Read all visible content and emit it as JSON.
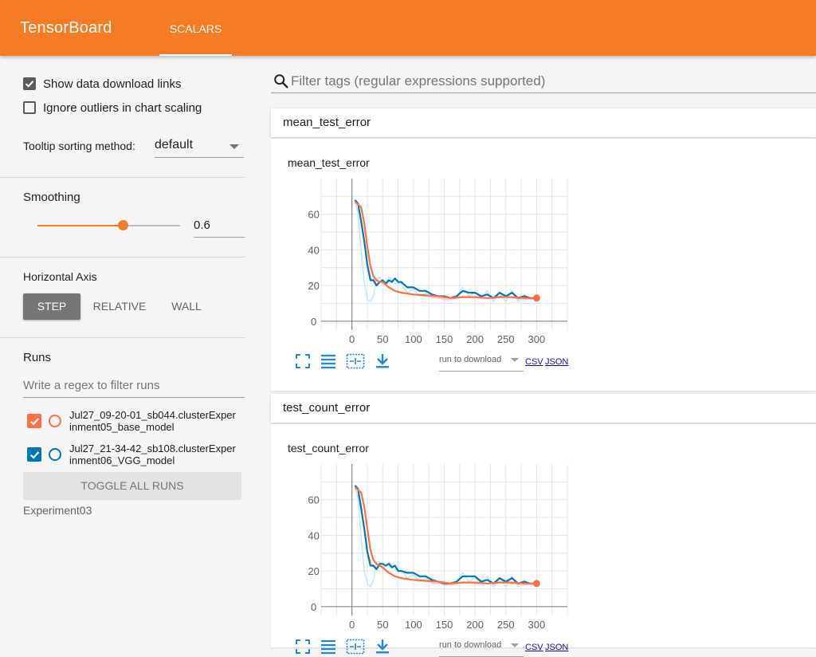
{
  "header": {
    "brand": "TensorBoard",
    "tab_scalars": "SCALARS"
  },
  "sidebar": {
    "show_download_links": {
      "label": "Show data download links",
      "checked": true
    },
    "ignore_outliers": {
      "label": "Ignore outliers in chart scaling",
      "checked": false
    },
    "tooltip_sorting": {
      "label": "Tooltip sorting method:",
      "value": "default"
    },
    "smoothing": {
      "title": "Smoothing",
      "value": "0.6",
      "fraction": 0.6
    },
    "horizontal_axis": {
      "title": "Horizontal Axis",
      "options": [
        "STEP",
        "RELATIVE",
        "WALL"
      ],
      "selected": "STEP"
    },
    "runs": {
      "title": "Runs",
      "filter_placeholder": "Write a regex to filter runs",
      "items": [
        {
          "label": "Jul27_09-20-01_sb044.clusterExper\ninment05_base_model",
          "color": "#ff7043",
          "checked": true
        },
        {
          "label": "Jul27_21-34-42_sb108.clusterExper\ninment06_VGG_model",
          "color": "#0077bb",
          "checked": true
        }
      ],
      "toggle_all": "TOGGLE ALL RUNS",
      "experiment": "Experiment03"
    }
  },
  "main": {
    "search_placeholder": "Filter tags (regular expressions supported)",
    "cards": [
      {
        "tag": "mean_test_error",
        "chart_title": "mean_test_error"
      },
      {
        "tag": "test_count_error",
        "chart_title": "test_count_error"
      }
    ],
    "download": {
      "select_label": "run to download",
      "csv": "CSV",
      "json": "JSON"
    }
  },
  "colors": {
    "accent": "#f57c24",
    "run_orange": "#ff7043",
    "run_blue": "#0077bb",
    "raw_orange": "#ffccbc",
    "raw_blue": "#b3e5fc"
  },
  "icons": [
    "search-icon",
    "fit-to-data-icon",
    "log-scale-icon",
    "zoom-region-icon",
    "download-icon"
  ],
  "chart_data": [
    {
      "type": "line",
      "title": "mean_test_error",
      "xlabel": "",
      "ylabel": "",
      "xlim": [
        -50,
        350
      ],
      "ylim": [
        -5,
        80
      ],
      "xticks": [
        0,
        50,
        100,
        150,
        200,
        250,
        300
      ],
      "yticks": [
        0,
        20,
        40,
        60
      ],
      "grid": true,
      "series": [
        {
          "color": "#ff7043",
          "x": [
            5,
            15,
            20,
            25,
            30,
            35,
            40,
            45,
            50,
            60,
            70,
            80,
            100,
            120,
            140,
            160,
            180,
            200,
            220,
            240,
            260,
            280,
            300
          ],
          "y": [
            67,
            64,
            55,
            42,
            31,
            25,
            23,
            22,
            22,
            19,
            17,
            16,
            15,
            14.5,
            14,
            13,
            13.5,
            13.5,
            13,
            13.5,
            13.5,
            13,
            13
          ]
        },
        {
          "color": "#0077bb",
          "x": [
            5,
            10,
            15,
            20,
            25,
            30,
            35,
            40,
            45,
            50,
            55,
            60,
            65,
            70,
            75,
            80,
            90,
            100,
            110,
            120,
            130,
            140,
            150,
            160,
            170,
            180,
            190,
            200,
            210,
            220,
            230,
            240,
            250,
            260,
            270,
            280,
            290,
            300
          ],
          "y": [
            68,
            66,
            56,
            45,
            32,
            23,
            23,
            20,
            22,
            23,
            21,
            23,
            22,
            24,
            22,
            22,
            19,
            19,
            17,
            17,
            15,
            14,
            14,
            13,
            14,
            17,
            16,
            16,
            14,
            15,
            13,
            16,
            14,
            16,
            13,
            14,
            13,
            13
          ]
        },
        {
          "color": "#b3e5fc",
          "x": [
            5,
            10,
            15,
            20,
            25,
            30,
            35,
            40,
            45,
            50,
            55,
            60,
            70,
            80,
            90,
            100,
            110,
            120,
            130,
            140,
            150,
            160,
            170,
            180,
            190,
            200,
            210,
            220,
            230,
            240,
            250,
            260,
            270,
            280,
            290,
            300
          ],
          "y": [
            68,
            60,
            40,
            22,
            12,
            11,
            14,
            24,
            25,
            20,
            22,
            25,
            21,
            21,
            16,
            18,
            14,
            16,
            13,
            13,
            12,
            12,
            14,
            19,
            14,
            16,
            13,
            17,
            11,
            16,
            11,
            17,
            11,
            15,
            12,
            13
          ]
        },
        {
          "color": "#ffccbc",
          "x": [
            5,
            15,
            25,
            35,
            45,
            55,
            70,
            85,
            100,
            120,
            140,
            160,
            180,
            200,
            220,
            240,
            260,
            280,
            300
          ],
          "y": [
            66,
            58,
            30,
            22,
            24,
            20,
            17,
            16,
            15,
            14,
            13,
            12,
            14,
            13,
            13,
            14,
            13,
            12,
            13
          ]
        }
      ]
    },
    {
      "type": "line",
      "title": "test_count_error",
      "xlabel": "",
      "ylabel": "",
      "xlim": [
        -50,
        350
      ],
      "ylim": [
        -5,
        80
      ],
      "xticks": [
        0,
        50,
        100,
        150,
        200,
        250,
        300
      ],
      "yticks": [
        0,
        20,
        40,
        60
      ],
      "grid": true,
      "series": [
        {
          "color": "#ff7043",
          "x": [
            5,
            15,
            20,
            25,
            30,
            35,
            40,
            45,
            50,
            60,
            70,
            80,
            100,
            120,
            140,
            160,
            180,
            200,
            220,
            240,
            260,
            280,
            300
          ],
          "y": [
            67,
            64,
            56,
            44,
            32,
            26,
            24,
            23,
            22,
            19,
            17,
            16,
            15,
            14.5,
            14,
            13,
            13.5,
            13.5,
            13,
            13.5,
            13.5,
            13,
            13
          ]
        },
        {
          "color": "#0077bb",
          "x": [
            5,
            10,
            15,
            20,
            25,
            30,
            35,
            40,
            45,
            50,
            55,
            60,
            65,
            70,
            75,
            80,
            90,
            100,
            110,
            120,
            130,
            140,
            150,
            160,
            170,
            180,
            190,
            200,
            210,
            220,
            230,
            240,
            250,
            260,
            270,
            280,
            290,
            300
          ],
          "y": [
            68,
            66,
            55,
            44,
            31,
            23,
            23,
            21,
            24,
            24,
            23,
            24,
            22,
            23,
            20,
            20,
            19,
            19,
            17,
            17,
            15,
            14,
            13,
            13,
            14,
            17,
            17,
            17,
            14,
            15,
            13,
            16,
            14,
            16,
            13,
            14,
            13,
            13
          ]
        },
        {
          "color": "#b3e5fc",
          "x": [
            5,
            10,
            15,
            20,
            25,
            30,
            35,
            40,
            45,
            50,
            55,
            60,
            70,
            80,
            90,
            100,
            110,
            120,
            130,
            140,
            150,
            160,
            170,
            180,
            190,
            200,
            210,
            220,
            230,
            240,
            250,
            260,
            270,
            280,
            290,
            300
          ],
          "y": [
            68,
            60,
            40,
            20,
            13,
            11,
            15,
            25,
            25,
            21,
            23,
            25,
            21,
            21,
            16,
            18,
            14,
            16,
            13,
            13,
            12,
            12,
            14,
            19,
            14,
            16,
            13,
            17,
            11,
            16,
            11,
            17,
            11,
            15,
            12,
            13
          ]
        },
        {
          "color": "#ffccbc",
          "x": [
            5,
            15,
            25,
            35,
            45,
            55,
            70,
            85,
            100,
            120,
            140,
            160,
            180,
            200,
            220,
            240,
            260,
            280,
            300
          ],
          "y": [
            66,
            58,
            30,
            22,
            24,
            20,
            17,
            16,
            15,
            14,
            13,
            12,
            14,
            13,
            13,
            14,
            13,
            12,
            13
          ]
        }
      ]
    }
  ]
}
